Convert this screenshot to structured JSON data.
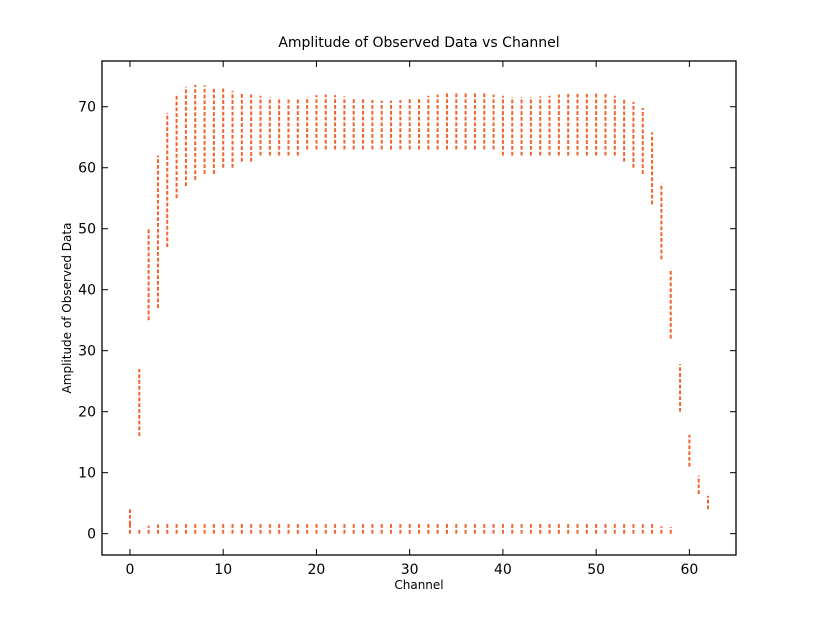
{
  "chart_data": {
    "type": "scatter",
    "title": "Amplitude of Observed Data vs Channel",
    "xlabel": "Channel",
    "ylabel": "Amplitude of Observed Data",
    "xlim": [
      -3,
      65
    ],
    "ylim": [
      -3.5,
      77.5
    ],
    "xticks": [
      0,
      10,
      20,
      30,
      40,
      50,
      60
    ],
    "yticks": [
      0,
      10,
      20,
      30,
      40,
      50,
      60,
      70
    ],
    "grid": false,
    "legend": "none",
    "marker": "vertical dash",
    "color": "#f2622b",
    "series": [
      {
        "x": [
          0,
          1,
          2,
          3,
          4,
          5,
          6,
          7,
          8,
          9,
          10,
          11,
          12,
          13,
          14,
          15,
          16,
          17,
          18,
          19,
          20,
          21,
          22,
          23,
          24,
          25,
          26,
          27,
          28,
          29,
          30,
          31,
          32,
          33,
          34,
          35,
          36,
          37,
          38,
          39,
          40,
          41,
          42,
          43,
          44,
          45,
          46,
          47,
          48,
          49,
          50,
          51,
          52,
          53,
          54,
          55,
          56,
          57,
          58,
          59,
          60,
          61,
          62
        ],
        "upper_min": [
          1.5,
          16,
          35,
          37,
          47,
          55,
          57,
          58,
          59,
          59,
          60,
          60,
          61,
          61,
          62,
          62,
          62,
          62,
          62,
          63,
          63,
          63,
          63,
          63,
          63,
          63,
          63,
          63,
          63,
          63,
          63,
          63,
          63,
          63,
          63,
          63,
          63,
          63,
          63,
          63,
          62,
          62,
          62,
          62,
          62,
          62,
          62,
          62,
          62,
          62,
          62,
          62,
          62,
          61,
          60,
          59,
          54,
          45,
          32,
          20,
          11,
          6.5,
          4
        ],
        "upper_max": [
          4,
          27,
          50,
          62,
          69,
          72,
          73.3,
          73.6,
          73.5,
          73.2,
          73,
          72.6,
          72.3,
          72,
          71.8,
          71.6,
          71.4,
          71.3,
          71.2,
          71.6,
          71.9,
          72,
          71.9,
          71.7,
          71.5,
          71.3,
          71.1,
          71,
          71,
          71.1,
          71.3,
          71.5,
          71.8,
          72,
          72.2,
          72.3,
          72.4,
          72.4,
          72.2,
          72,
          71.8,
          71.6,
          71.6,
          71.6,
          71.7,
          71.8,
          72,
          72.1,
          72.1,
          72.1,
          72.2,
          72.1,
          71.8,
          71.2,
          70.8,
          69.8,
          65.8,
          57.4,
          43.3,
          27.8,
          16.2,
          9.5,
          6.2
        ],
        "lower_max": [
          2,
          0.8,
          1.3,
          1.5,
          1.7,
          1.8,
          1.8,
          1.8,
          1.8,
          1.8,
          1.8,
          1.8,
          1.8,
          1.8,
          1.8,
          1.8,
          1.8,
          1.8,
          1.8,
          1.8,
          1.8,
          1.8,
          1.8,
          1.8,
          1.8,
          1.8,
          1.8,
          1.8,
          1.8,
          1.8,
          1.8,
          1.8,
          1.8,
          1.8,
          1.8,
          1.8,
          1.8,
          1.8,
          1.8,
          1.8,
          1.8,
          1.8,
          1.8,
          1.8,
          1.8,
          1.8,
          1.8,
          1.8,
          1.8,
          1.8,
          1.8,
          1.8,
          1.8,
          1.8,
          1.8,
          1.8,
          1.6,
          1.2,
          1.1,
          null,
          null,
          null,
          null
        ]
      }
    ]
  }
}
